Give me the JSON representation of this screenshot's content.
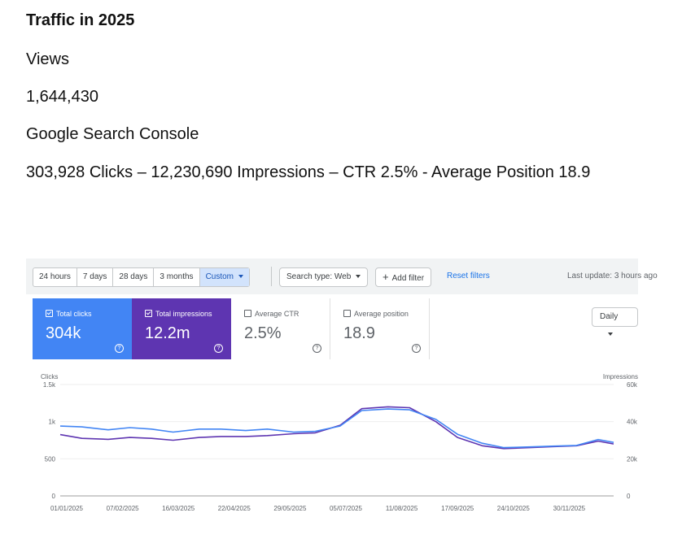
{
  "document": {
    "title": "Traffic in 2025",
    "views_label": "Views",
    "views_value": "1,644,430",
    "gsc_label": "Google Search Console",
    "gsc_summary": "303,928 Clicks – 12,230,690 Impressions – CTR 2.5% - Average Position 18.9"
  },
  "toolbar": {
    "ranges": [
      {
        "label": "24 hours"
      },
      {
        "label": "7 days"
      },
      {
        "label": "28 days"
      },
      {
        "label": "3 months"
      },
      {
        "label": "Custom",
        "active": true
      }
    ],
    "search_type": "Search type: Web",
    "add_filter": "Add filter",
    "reset_filters": "Reset filters",
    "last_update": "Last update: 3 hours ago"
  },
  "metric_cards": [
    {
      "label": "Total clicks",
      "value": "304k",
      "checked": true,
      "color": "#4285f4"
    },
    {
      "label": "Total impressions",
      "value": "12.2m",
      "checked": true,
      "color": "#5e35b1"
    },
    {
      "label": "Average CTR",
      "value": "2.5%",
      "checked": false
    },
    {
      "label": "Average position",
      "value": "18.9",
      "checked": false
    }
  ],
  "granularity": "Daily",
  "chart_data": {
    "type": "line",
    "y_left_title": "Clicks",
    "y_right_title": "Impressions",
    "y_left_ticks": [
      "0",
      "500",
      "1k",
      "1.5k"
    ],
    "y_right_ticks": [
      "0",
      "20k",
      "40k",
      "60k"
    ],
    "y_left_range": [
      0,
      1500
    ],
    "y_right_range": [
      0,
      60000
    ],
    "x_range": [
      "2025-01-01",
      "2025-12-25"
    ],
    "x_ticks": [
      "01/01/2025",
      "07/02/2025",
      "16/03/2025",
      "22/04/2025",
      "29/05/2025",
      "05/07/2025",
      "11/08/2025",
      "17/09/2025",
      "24/10/2025",
      "30/11/2025"
    ],
    "series": [
      {
        "name": "Total clicks",
        "color": "#4285f4",
        "axis": "left",
        "x": [
          "2025-01-01",
          "2025-01-15",
          "2025-02-01",
          "2025-02-15",
          "2025-03-01",
          "2025-03-15",
          "2025-04-01",
          "2025-04-15",
          "2025-05-01",
          "2025-05-15",
          "2025-06-01",
          "2025-06-15",
          "2025-07-01",
          "2025-07-15",
          "2025-08-01",
          "2025-08-15",
          "2025-09-01",
          "2025-09-15",
          "2025-10-01",
          "2025-10-15",
          "2025-11-01",
          "2025-11-15",
          "2025-12-01",
          "2025-12-15",
          "2025-12-25"
        ],
        "values": [
          940,
          930,
          890,
          920,
          900,
          860,
          900,
          900,
          880,
          900,
          860,
          870,
          940,
          1150,
          1170,
          1160,
          1030,
          830,
          710,
          650,
          660,
          670,
          680,
          760,
          720
        ]
      },
      {
        "name": "Total impressions",
        "color": "#5e35b1",
        "axis": "right",
        "x": [
          "2025-01-01",
          "2025-01-15",
          "2025-02-01",
          "2025-02-15",
          "2025-03-01",
          "2025-03-15",
          "2025-04-01",
          "2025-04-15",
          "2025-05-01",
          "2025-05-15",
          "2025-06-01",
          "2025-06-15",
          "2025-07-01",
          "2025-07-15",
          "2025-08-01",
          "2025-08-15",
          "2025-09-01",
          "2025-09-15",
          "2025-10-01",
          "2025-10-15",
          "2025-11-01",
          "2025-11-15",
          "2025-12-01",
          "2025-12-15",
          "2025-12-25"
        ],
        "values": [
          33000,
          31000,
          30500,
          31500,
          31000,
          30000,
          31500,
          32000,
          32000,
          32500,
          33500,
          34000,
          38000,
          47000,
          48000,
          47500,
          40000,
          31500,
          27000,
          25500,
          26000,
          26500,
          27000,
          29500,
          28000
        ]
      }
    ]
  }
}
